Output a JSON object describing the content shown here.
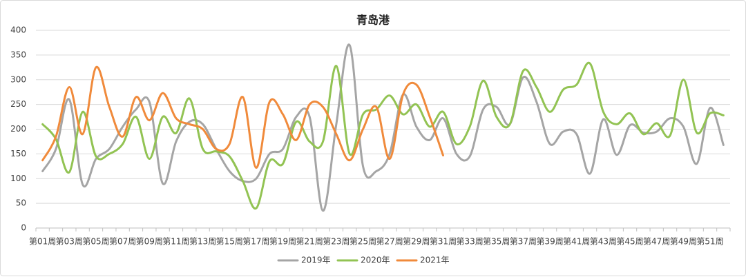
{
  "chart_data": {
    "type": "line",
    "title": "青岛港",
    "categories": [
      "第01周",
      null,
      "第03周",
      null,
      "第05周",
      null,
      "第07周",
      null,
      "第09周",
      null,
      "第11周",
      null,
      "第13周",
      null,
      "第15周",
      null,
      "第17周",
      null,
      "第19周",
      null,
      "第21周",
      null,
      "第23周",
      null,
      "第25周",
      null,
      "第27周",
      null,
      "第29周",
      null,
      "第31周",
      null,
      "第33周",
      null,
      "第35周",
      null,
      "第37周",
      null,
      "第39周",
      null,
      "第41周",
      null,
      "第43周",
      null,
      "第45周",
      null,
      "第47周",
      null,
      "第49周",
      null,
      "第51周",
      null
    ],
    "series": [
      {
        "name": "2019年",
        "color": "#a5a5a5",
        "values": [
          115,
          160,
          260,
          88,
          140,
          160,
          205,
          240,
          255,
          90,
          175,
          215,
          210,
          160,
          115,
          95,
          100,
          150,
          160,
          225,
          225,
          35,
          210,
          370,
          125,
          115,
          150,
          270,
          205,
          178,
          222,
          150,
          145,
          240,
          245,
          210,
          305,
          255,
          170,
          195,
          190,
          110,
          220,
          148,
          208,
          193,
          195,
          222,
          205,
          130,
          243,
          168
        ]
      },
      {
        "name": "2020年",
        "color": "#92c353",
        "values": [
          210,
          180,
          113,
          235,
          145,
          150,
          170,
          225,
          140,
          225,
          192,
          262,
          160,
          155,
          145,
          95,
          40,
          135,
          130,
          215,
          175,
          175,
          328,
          150,
          230,
          240,
          268,
          230,
          250,
          205,
          235,
          170,
          205,
          298,
          225,
          210,
          318,
          285,
          235,
          280,
          290,
          333,
          235,
          210,
          232,
          190,
          212,
          187,
          300,
          193,
          232,
          228
        ]
      },
      {
        "name": "2021年",
        "color": "#f08a3b",
        "values": [
          137,
          185,
          285,
          190,
          325,
          245,
          185,
          265,
          218,
          273,
          222,
          210,
          200,
          160,
          170,
          265,
          122,
          255,
          230,
          178,
          250,
          245,
          190,
          137,
          200,
          245,
          140,
          270,
          290,
          225,
          147,
          null,
          null,
          null,
          null,
          null,
          null,
          null,
          null,
          null,
          null,
          null,
          null,
          null,
          null,
          null,
          null,
          null,
          null,
          null,
          null,
          null
        ]
      }
    ],
    "ylim": [
      0,
      400
    ],
    "yticks": [
      0,
      50,
      100,
      150,
      200,
      250,
      300,
      350,
      400
    ],
    "grid": true,
    "legend": "bottom"
  }
}
